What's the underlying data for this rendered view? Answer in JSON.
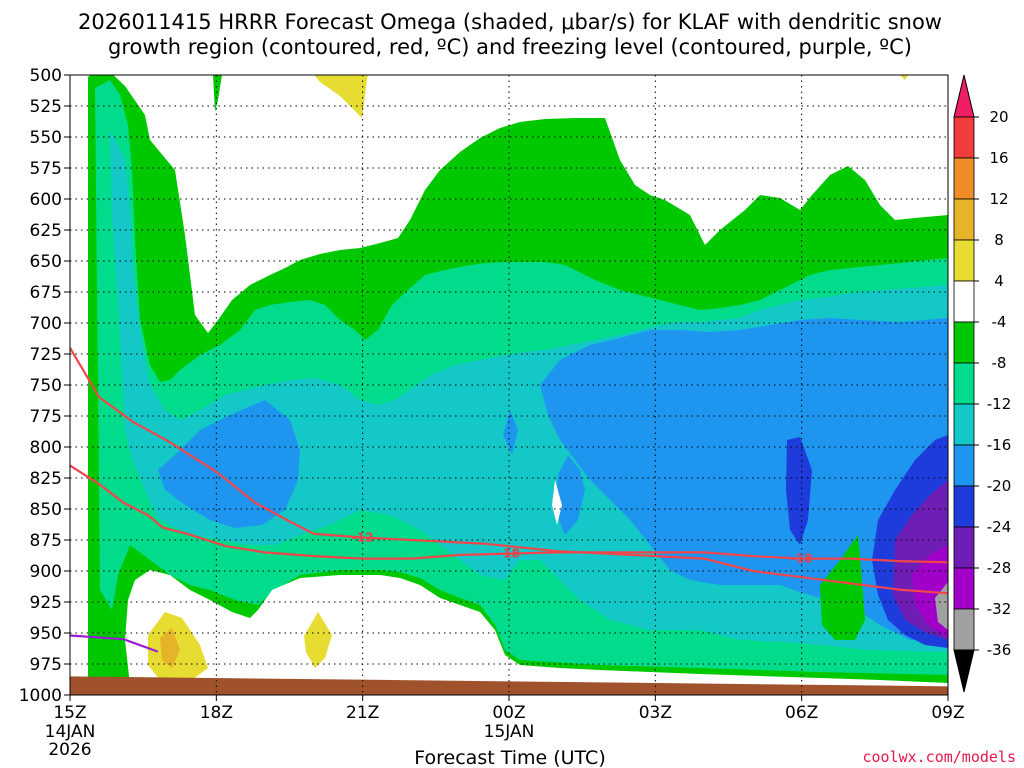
{
  "chart_data": {
    "type": "contour",
    "title_line1": "2026011415 HRRR Forecast Omega (shaded, μbar/s) for KLAF with dendritic snow",
    "title_line2": "growth region (contoured, red, ºC) and freezing level (contoured, purple, ºC)",
    "xlabel": "Forecast Time (UTC)",
    "credit": "coolwx.com/models",
    "x_ticks": [
      {
        "hour": 0,
        "label": "15Z",
        "sub1": "14JAN",
        "sub2": "2026"
      },
      {
        "hour": 3,
        "label": "18Z",
        "sub1": "",
        "sub2": ""
      },
      {
        "hour": 6,
        "label": "21Z",
        "sub1": "",
        "sub2": ""
      },
      {
        "hour": 9,
        "label": "00Z",
        "sub1": "15JAN",
        "sub2": ""
      },
      {
        "hour": 12,
        "label": "03Z",
        "sub1": "",
        "sub2": ""
      },
      {
        "hour": 15,
        "label": "06Z",
        "sub1": "",
        "sub2": ""
      },
      {
        "hour": 18,
        "label": "09Z",
        "sub1": "",
        "sub2": ""
      }
    ],
    "y_ticks": [
      500,
      525,
      550,
      575,
      600,
      625,
      650,
      675,
      700,
      725,
      750,
      775,
      800,
      825,
      850,
      875,
      900,
      925,
      950,
      975,
      1000
    ],
    "ylim": [
      500,
      1000
    ],
    "colorbar": {
      "labels": [
        "20",
        "16",
        "12",
        "8",
        "4",
        "-4",
        "-8",
        "-12",
        "-16",
        "-20",
        "-24",
        "-28",
        "-32",
        "-36"
      ],
      "colors": [
        "#f01e64",
        "#f03c3c",
        "#f08c28",
        "#e6b428",
        "#e6dc32",
        "#ffffff",
        "#00c800",
        "#00dc8c",
        "#14c8c8",
        "#1e96f0",
        "#1e3cdc",
        "#6e1eb4",
        "#a000c8",
        "#a0a0a0",
        "#000000"
      ]
    },
    "shading_levels": {
      "green": "-8 to -4",
      "mint": "-12 to -8",
      "cyan": "-16 to -12",
      "blue": "-20 to -16",
      "dkblue": "-24 to -20",
      "violet": "-28 to -24",
      "purple": "-32 to -28",
      "gray": "-36 to -32",
      "yellow": "4 to 8",
      "gold": "8 to 12"
    },
    "dgz_contours": [
      {
        "label": "-18",
        "points": [
          [
            0,
            815
          ],
          [
            0.6,
            830
          ],
          [
            1.1,
            845
          ],
          [
            1.6,
            855
          ],
          [
            1.9,
            865
          ],
          [
            2.4,
            870
          ],
          [
            3.2,
            880
          ],
          [
            4.0,
            885
          ],
          [
            5.0,
            888
          ],
          [
            6.0,
            890
          ],
          [
            7.0,
            890
          ],
          [
            8.0,
            887
          ],
          [
            9.0,
            886
          ],
          [
            10.0,
            885
          ],
          [
            11.0,
            885
          ],
          [
            12.0,
            885
          ],
          [
            13.0,
            885
          ],
          [
            14.0,
            888
          ],
          [
            15.0,
            890
          ],
          [
            16.0,
            890
          ],
          [
            17.0,
            892
          ],
          [
            18.0,
            893
          ]
        ]
      },
      {
        "label": "-12",
        "points": [
          [
            0,
            720
          ],
          [
            0.6,
            760
          ],
          [
            1.3,
            780
          ],
          [
            2.0,
            795
          ],
          [
            3.0,
            820
          ],
          [
            3.8,
            845
          ],
          [
            4.5,
            860
          ],
          [
            5.0,
            870
          ],
          [
            6.0,
            873
          ],
          [
            7.0,
            875
          ],
          [
            7.5,
            876
          ],
          [
            8.0,
            877
          ],
          [
            8.5,
            878
          ],
          [
            9.0,
            880
          ],
          [
            9.5,
            882
          ],
          [
            10.0,
            884
          ],
          [
            11.0,
            886
          ],
          [
            12.0,
            888
          ],
          [
            13.0,
            890
          ],
          [
            14.0,
            900
          ],
          [
            15.0,
            905
          ],
          [
            16.0,
            910
          ],
          [
            17.0,
            915
          ],
          [
            18.0,
            918
          ]
        ]
      }
    ],
    "freezing_level": {
      "label": "0",
      "points": [
        [
          0,
          952
        ],
        [
          1.1,
          955
        ],
        [
          1.8,
          965
        ]
      ]
    },
    "terrain_top_hpa": [
      [
        0,
        985
      ],
      [
        18,
        993
      ]
    ]
  }
}
